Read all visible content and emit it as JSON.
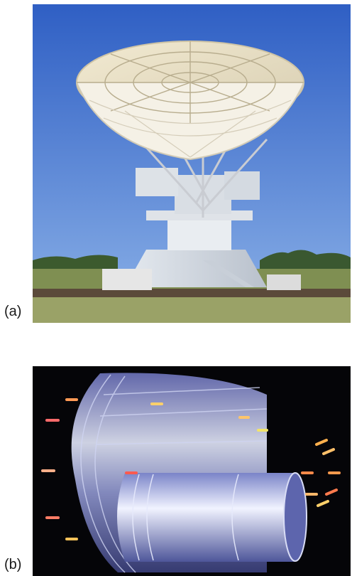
{
  "figure": {
    "panel_a": {
      "label": "(a)"
    },
    "panel_b": {
      "label": "(b)"
    }
  }
}
